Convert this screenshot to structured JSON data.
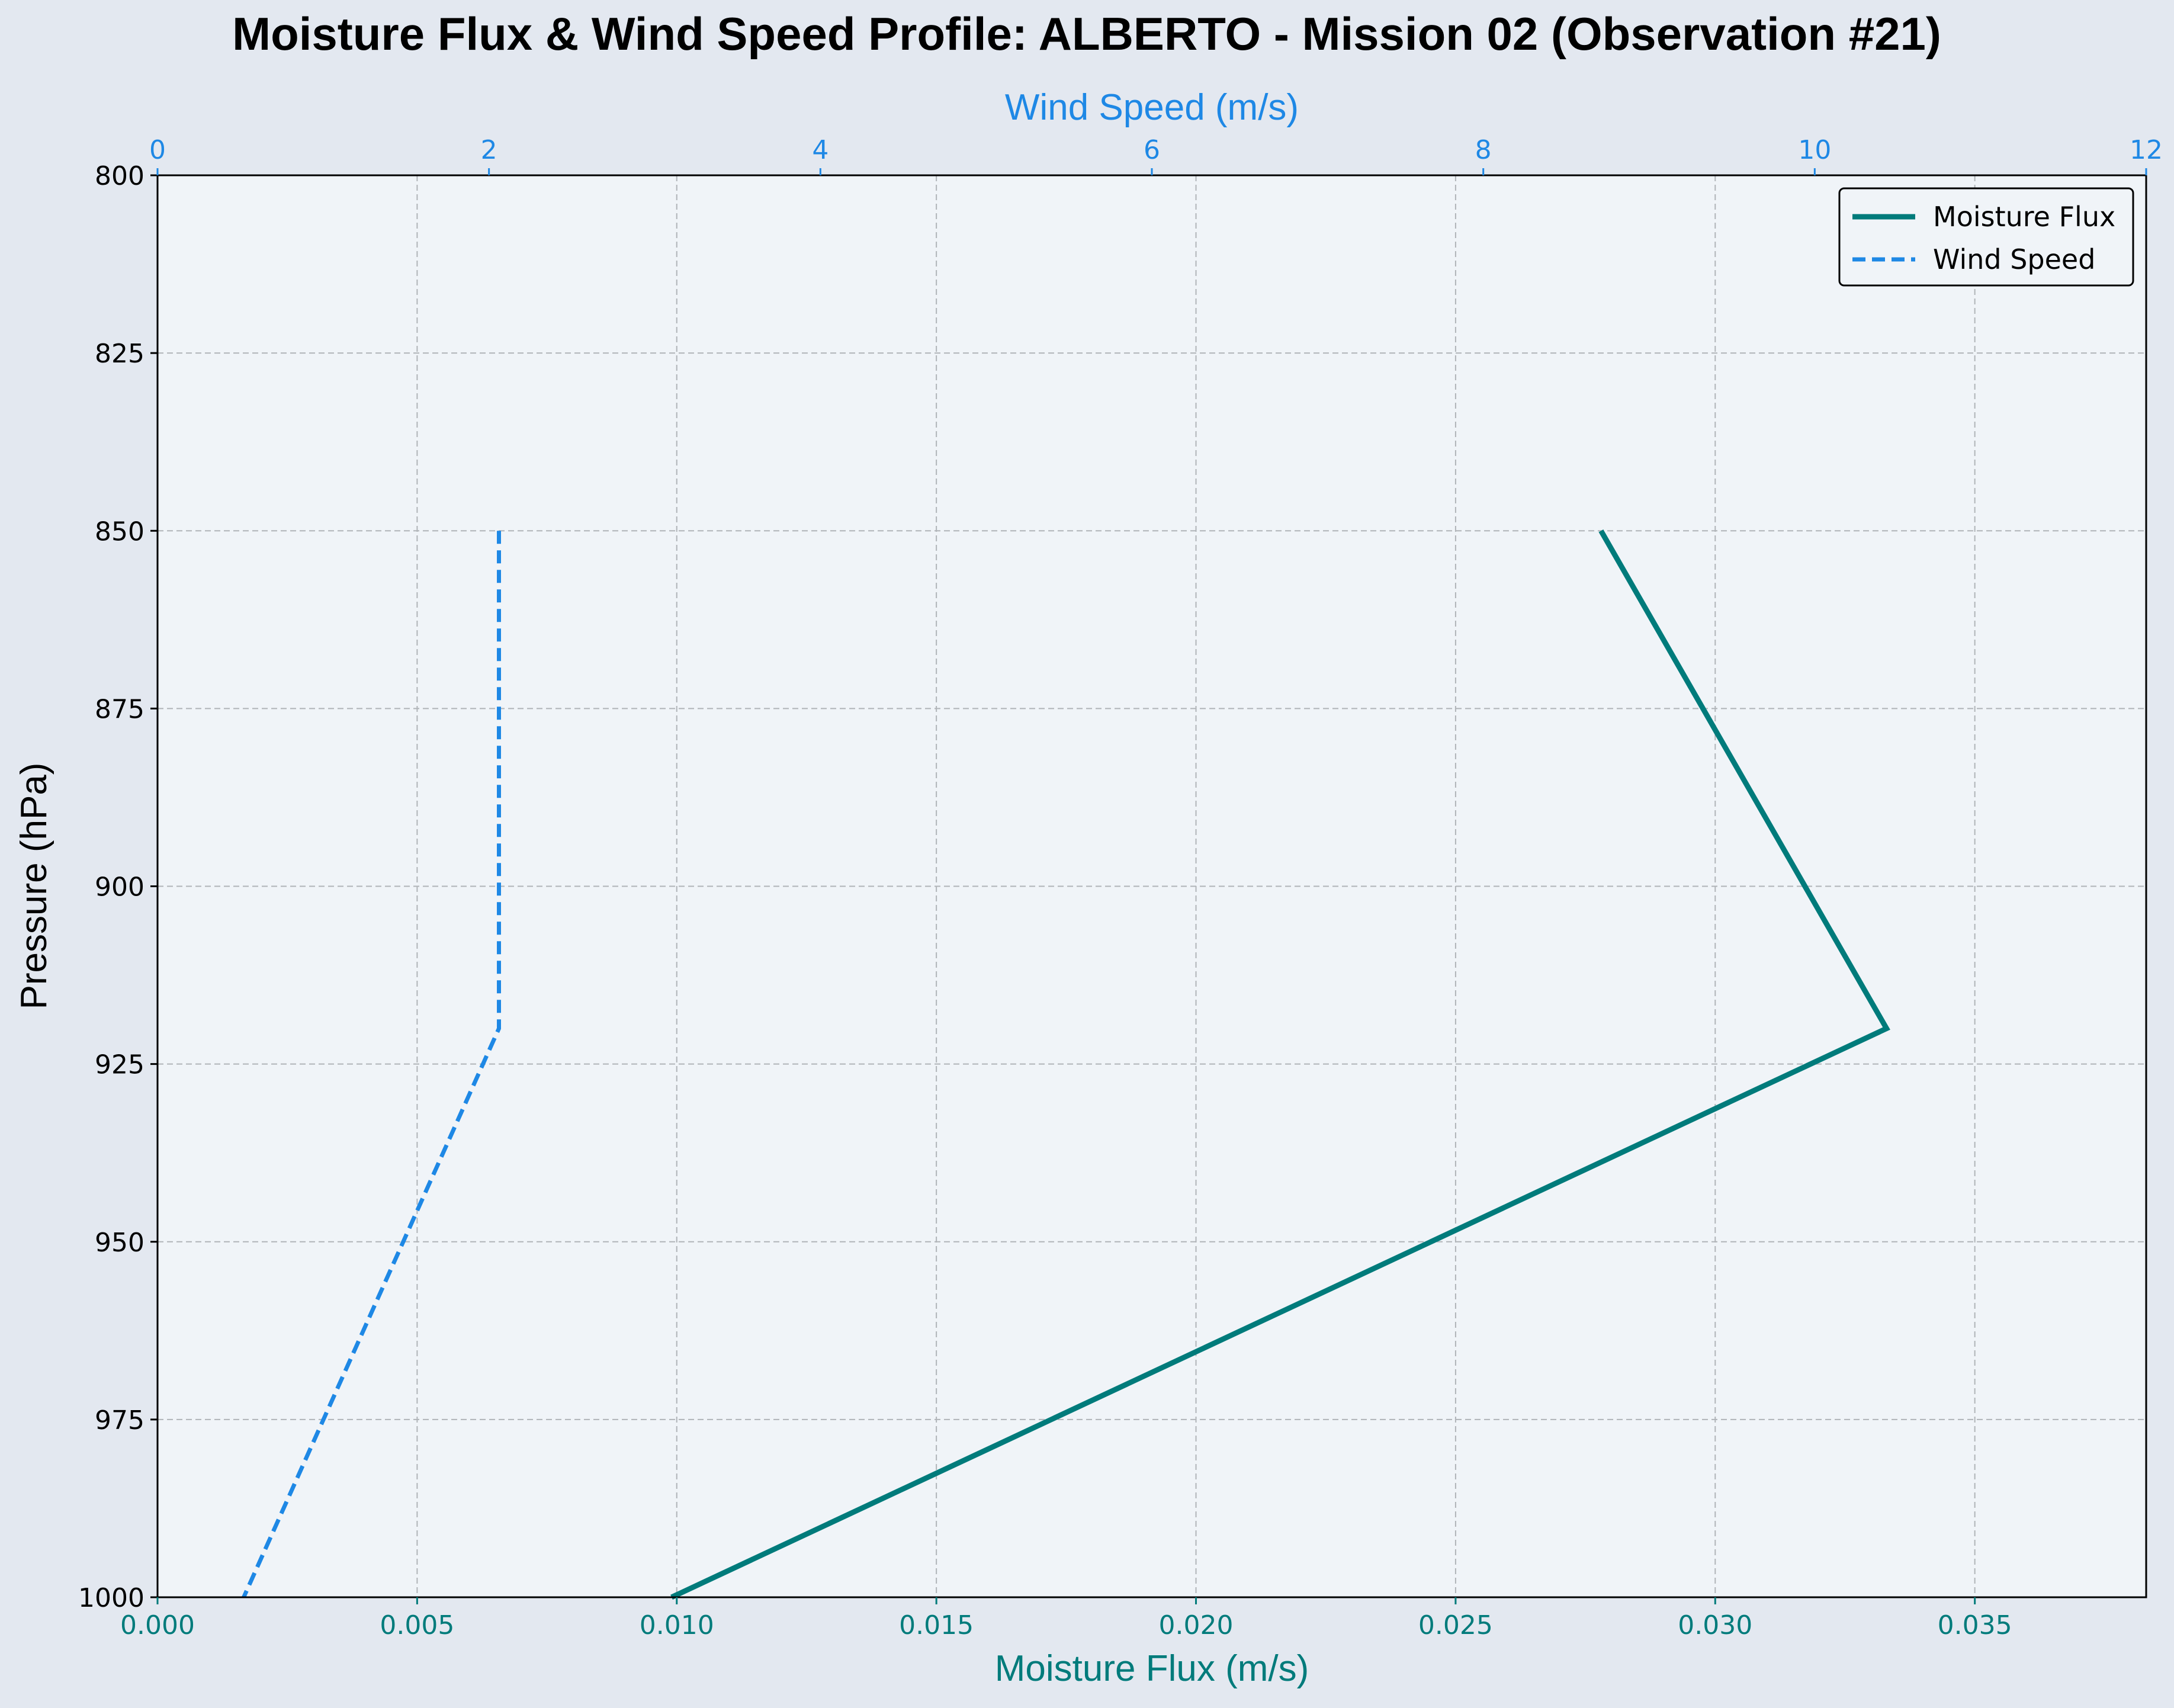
{
  "chart_data": {
    "type": "line",
    "title": "Moisture Flux & Wind Speed Profile: ALBERTO - Mission 02 (Observation #21)",
    "ylabel": "Pressure (hPa)",
    "ylim": [
      800,
      1000
    ],
    "y_inverted": true,
    "yticks": [
      800,
      825,
      850,
      875,
      900,
      925,
      950,
      975,
      1000
    ],
    "xbottom": {
      "label": "Moisture Flux (m/s)",
      "lim": [
        0,
        0.0383
      ],
      "ticks": [
        0,
        0.005,
        0.01,
        0.015,
        0.02,
        0.025,
        0.03,
        0.035
      ],
      "tick_labels": [
        "0.000",
        "0.005",
        "0.010",
        "0.015",
        "0.020",
        "0.025",
        "0.030",
        "0.035"
      ]
    },
    "xtop": {
      "label": "Wind Speed (m/s)",
      "lim": [
        0,
        12
      ],
      "ticks": [
        0,
        2,
        4,
        6,
        8,
        10,
        12
      ],
      "tick_labels": [
        "0",
        "2",
        "4",
        "6",
        "8",
        "10",
        "12"
      ]
    },
    "grid": true,
    "legend_position": "top-right",
    "series": [
      {
        "name": "Moisture Flux",
        "axis": "bottom",
        "style": "solid",
        "color": "#007b7b",
        "pressure": [
          850,
          920,
          1000
        ],
        "values": [
          0.0278,
          0.0333,
          0.0099
        ]
      },
      {
        "name": "Wind Speed",
        "axis": "top",
        "style": "dashed",
        "color": "#1e88e5",
        "pressure": [
          850,
          920,
          1000
        ],
        "values": [
          2.06,
          2.06,
          0.52
        ]
      }
    ]
  },
  "colors": {
    "background": "#e3e8f0",
    "plot_background": "#f0f4f8",
    "grid": "#b0b4b8",
    "bottom_axis": "#007b7b",
    "top_axis": "#1e88e5"
  }
}
